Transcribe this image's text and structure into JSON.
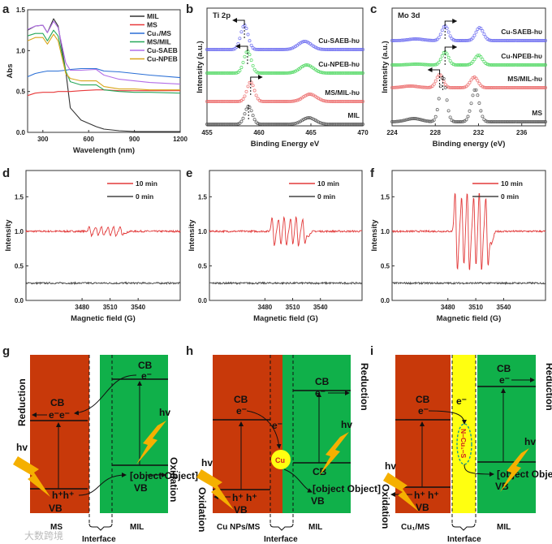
{
  "panel_labels": {
    "a": "a",
    "b": "b",
    "c": "c",
    "d": "d",
    "e": "e",
    "f": "f",
    "g": "g",
    "h": "h",
    "i": "i"
  },
  "colors": {
    "MIL": "#333333",
    "MS": "#e8393a",
    "Cu1/MS": "#2a6fd6",
    "MS/MIL": "#27a85a",
    "Cu-SAEB": "#b26ee8",
    "Cu-NPEB": "#d9a51a",
    "xps_blue": "#6b6bf0",
    "xps_green": "#4ed860",
    "xps_red": "#ec6c6c",
    "xps_gray": "#555555",
    "epr_red": "#e23a3a",
    "epr_gray": "#444444",
    "ms_band": "#c8390a",
    "mil_band": "#10b04a",
    "interface_yellow": "#ffff10",
    "lightning": "#f5b000"
  },
  "chart_data": [
    {
      "id": "a",
      "type": "line",
      "title": "",
      "xlabel": "Wavelength (nm)",
      "ylabel": "Abs",
      "xlim": [
        200,
        1200
      ],
      "ylim": [
        0,
        1.5
      ],
      "xticks": [
        "300",
        "600",
        "900",
        "1200"
      ],
      "yticks": [
        "0.0",
        "0.5",
        "1.0",
        "1.5"
      ],
      "legend": "top-right",
      "x": [
        200,
        250,
        300,
        330,
        370,
        400,
        450,
        480,
        550,
        650,
        700,
        800,
        900,
        1000,
        1200
      ],
      "series": [
        {
          "name": "MIL",
          "values": [
            1.25,
            1.3,
            1.31,
            1.22,
            1.39,
            1.3,
            0.75,
            0.3,
            0.15,
            0.07,
            0.04,
            0.02,
            0.01,
            0.01,
            0.01
          ]
        },
        {
          "name": "MS",
          "values": [
            0.45,
            0.48,
            0.49,
            0.49,
            0.49,
            0.5,
            0.5,
            0.5,
            0.51,
            0.52,
            0.52,
            0.51,
            0.51,
            0.51,
            0.51
          ]
        },
        {
          "name": "Cu₁/MS",
          "values": [
            0.68,
            0.72,
            0.74,
            0.75,
            0.75,
            0.75,
            0.76,
            0.77,
            0.78,
            0.78,
            0.75,
            0.74,
            0.72,
            0.7,
            0.67
          ]
        },
        {
          "name": "MS/MIL",
          "values": [
            1.18,
            1.21,
            1.21,
            1.12,
            1.25,
            1.18,
            0.75,
            0.62,
            0.58,
            0.58,
            0.52,
            0.5,
            0.49,
            0.49,
            0.48
          ]
        },
        {
          "name": "Cu-SAEB",
          "values": [
            1.26,
            1.3,
            1.31,
            1.22,
            1.36,
            1.28,
            0.85,
            0.76,
            0.76,
            0.77,
            0.7,
            0.65,
            0.63,
            0.61,
            0.59
          ]
        },
        {
          "name": "Cu-NPEB",
          "values": [
            1.12,
            1.16,
            1.16,
            1.08,
            1.2,
            1.12,
            0.72,
            0.66,
            0.63,
            0.63,
            0.56,
            0.53,
            0.53,
            0.52,
            0.52
          ]
        }
      ]
    },
    {
      "id": "b",
      "type": "scatter",
      "title": "Ti 2p",
      "xlabel": "Binding Energy eV",
      "ylabel": "Intensity (a.u.)",
      "xlim": [
        455,
        470
      ],
      "xticks": [
        "455",
        "460",
        "465",
        "470"
      ],
      "series": [
        {
          "name": "Cu-SAEB-hυ",
          "peaks": [
            458.6,
            464.4
          ],
          "shift": "left"
        },
        {
          "name": "Cu-NPEB-hυ",
          "peaks": [
            458.9,
            464.6
          ],
          "shift": "left"
        },
        {
          "name": "MS/MIL-hυ",
          "peaks": [
            459.2,
            464.9
          ],
          "shift": "right"
        },
        {
          "name": "MIL",
          "peaks": [
            459.0,
            464.8
          ],
          "shift": "none"
        }
      ]
    },
    {
      "id": "c",
      "type": "scatter",
      "title": "Mo 3d",
      "xlabel": "Binding energy (eV)",
      "ylabel": "Intensity (a.u.)",
      "xlim": [
        224,
        238.2
      ],
      "xticks": [
        "224",
        "228",
        "232",
        "236"
      ],
      "series": [
        {
          "name": "Cu-SAEB-hυ",
          "peaks": [
            228.9,
            232.1
          ],
          "shift": "right"
        },
        {
          "name": "Cu-NPEB-hυ",
          "peaks": [
            228.9,
            232.0
          ],
          "shift": "right"
        },
        {
          "name": "MS/MIL-hυ",
          "peaks": [
            228.4,
            231.6
          ],
          "shift": "left"
        },
        {
          "name": "MS",
          "peaks": [
            228.7,
            231.7
          ],
          "shift": "none"
        }
      ]
    },
    {
      "id": "d",
      "type": "line",
      "xlabel": "Magnetic field (G)",
      "ylabel": "Intensity",
      "xlim": [
        3420,
        3585
      ],
      "ylim": [
        0,
        1.88
      ],
      "xticks": [
        "3480",
        "3510",
        "3540"
      ],
      "yticks": [
        "0.0",
        "0.5",
        "1.0",
        "1.5"
      ],
      "legend": "top-right",
      "line_positions": [
        3489,
        3496,
        3502,
        3509,
        3515,
        3522
      ],
      "series": [
        {
          "name": "10 min",
          "baseline": 1.0,
          "amplitude": 0.07
        },
        {
          "name": "0 min",
          "baseline": 0.25,
          "amplitude": 0
        }
      ]
    },
    {
      "id": "e",
      "type": "line",
      "xlabel": "Magnetic field (G)",
      "ylabel": "Intensity",
      "xlim": [
        3420,
        3585
      ],
      "ylim": [
        0,
        1.88
      ],
      "xticks": [
        "3480",
        "3510",
        "3540"
      ],
      "yticks": [
        "0.0",
        "0.5",
        "1.0",
        "1.5"
      ],
      "legend": "top-right",
      "line_positions": [
        3489,
        3496,
        3502,
        3509,
        3515,
        3522
      ],
      "series": [
        {
          "name": "10 min",
          "baseline": 1.0,
          "amplitude": 0.22
        },
        {
          "name": "0 min",
          "baseline": 0.25,
          "amplitude": 0
        }
      ]
    },
    {
      "id": "f",
      "type": "line",
      "xlabel": "Magnetic field (G)",
      "ylabel": "Intensity",
      "xlim": [
        3420,
        3585
      ],
      "ylim": [
        0,
        1.88
      ],
      "xticks": [
        "3480",
        "3510",
        "3540"
      ],
      "yticks": [
        "0.0",
        "0.5",
        "1.0",
        "1.5"
      ],
      "legend": "top-right",
      "line_positions": [
        3489,
        3496,
        3502,
        3509,
        3515,
        3522
      ],
      "series": [
        {
          "name": "10 min",
          "baseline": 1.0,
          "amplitude": 0.6
        },
        {
          "name": "0 min",
          "baseline": 0.25,
          "amplitude": 0
        }
      ]
    }
  ],
  "diagrams": {
    "cb": "CB",
    "vb": "VB",
    "e": "e⁻",
    "ee": "e⁻e⁻",
    "h": {
      "left": "Cu NPs/MS",
      "right": "MIL"
    },
    "hh": "h⁺h⁺",
    "hh2": "h⁺ h⁺",
    "hv": "hv",
    "reduction": "Reduction",
    "oxidation": "Oxidation",
    "interface": "Interface",
    "cu": "Cu",
    "n_cu_s": "N–Cu₁–S",
    "g": {
      "left": "MS",
      "right": "MIL"
    },
    "i": {
      "left": "Cu₁/MS",
      "right": "MIL"
    }
  },
  "watermark": "大数跨境"
}
